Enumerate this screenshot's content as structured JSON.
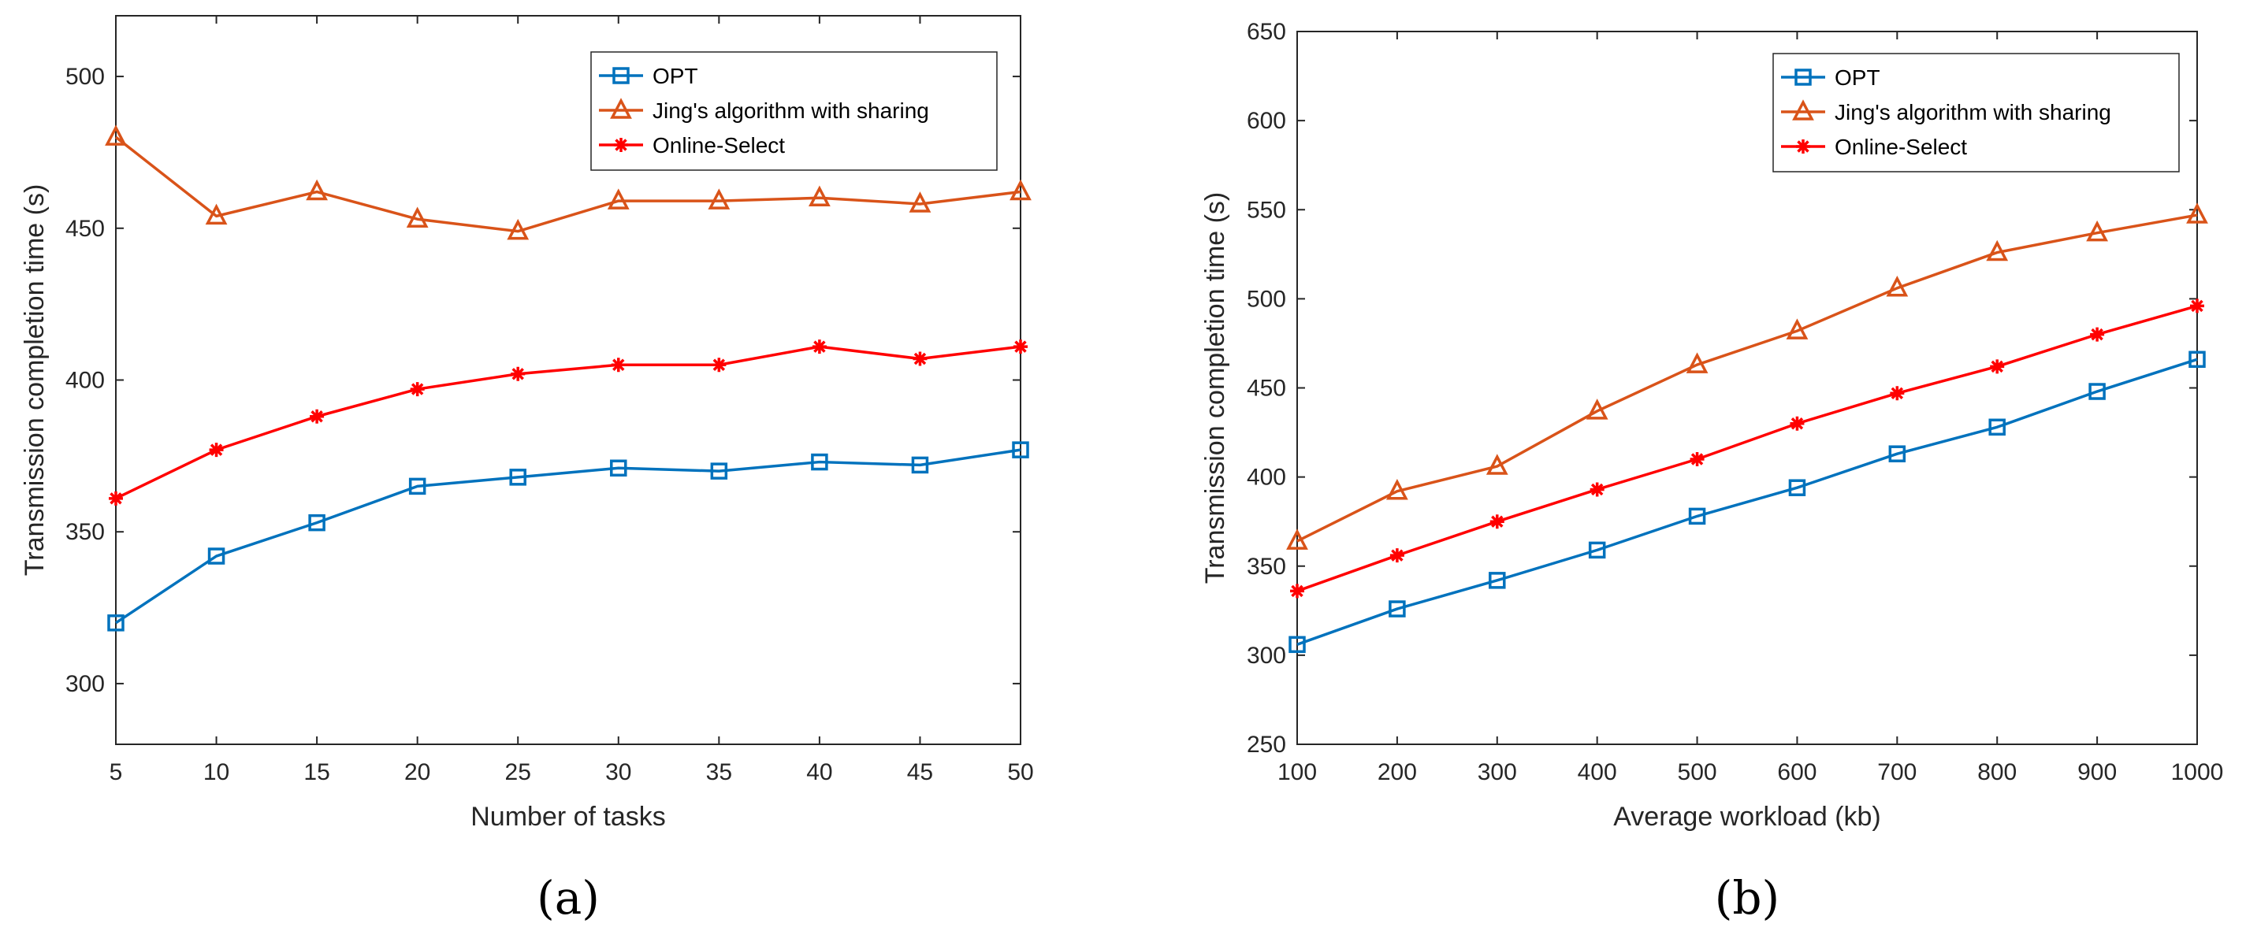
{
  "colors": {
    "opt": "#0072BD",
    "jing": "#D95319",
    "online": "#FF0000",
    "axis": "#262626",
    "legend_border": "#262626"
  },
  "chart_data": [
    {
      "type": "line",
      "caption": "(a)",
      "title": "",
      "xlabel": "Number of tasks",
      "ylabel": "Transmission completion time (s)",
      "xlim": [
        5,
        50
      ],
      "ylim": [
        280,
        520
      ],
      "xticks": [
        5,
        10,
        15,
        20,
        25,
        30,
        35,
        40,
        45,
        50
      ],
      "yticks": [
        300,
        350,
        400,
        450,
        500
      ],
      "legend_position": "top-right",
      "x": [
        5,
        10,
        15,
        20,
        25,
        30,
        35,
        40,
        45,
        50
      ],
      "series": [
        {
          "name": "OPT",
          "marker": "square",
          "color_key": "opt",
          "values": [
            320,
            342,
            353,
            365,
            368,
            371,
            370,
            373,
            372,
            377
          ]
        },
        {
          "name": "Jing's algorithm with sharing",
          "marker": "triangle",
          "color_key": "jing",
          "values": [
            480,
            454,
            462,
            453,
            449,
            459,
            459,
            460,
            458,
            462
          ]
        },
        {
          "name": "Online-Select",
          "marker": "star",
          "color_key": "online",
          "values": [
            361,
            377,
            388,
            397,
            402,
            405,
            405,
            411,
            407,
            411
          ]
        }
      ]
    },
    {
      "type": "line",
      "caption": "(b)",
      "title": "",
      "xlabel": "Average workload (kb)",
      "ylabel": "Transmission completion time (s)",
      "xlim": [
        100,
        1000
      ],
      "ylim": [
        250,
        650
      ],
      "xticks": [
        100,
        200,
        300,
        400,
        500,
        600,
        700,
        800,
        900,
        1000
      ],
      "yticks": [
        250,
        300,
        350,
        400,
        450,
        500,
        550,
        600,
        650
      ],
      "legend_position": "top-right",
      "x": [
        100,
        200,
        300,
        400,
        500,
        600,
        700,
        800,
        900,
        1000
      ],
      "series": [
        {
          "name": "OPT",
          "marker": "square",
          "color_key": "opt",
          "values": [
            306,
            326,
            342,
            359,
            378,
            394,
            413,
            428,
            448,
            466
          ]
        },
        {
          "name": "Jing's algorithm with sharing",
          "marker": "triangle",
          "color_key": "jing",
          "values": [
            364,
            392,
            406,
            437,
            463,
            482,
            506,
            526,
            537,
            547
          ]
        },
        {
          "name": "Online-Select",
          "marker": "star",
          "color_key": "online",
          "values": [
            336,
            356,
            375,
            393,
            410,
            430,
            447,
            462,
            480,
            496
          ]
        }
      ]
    }
  ]
}
